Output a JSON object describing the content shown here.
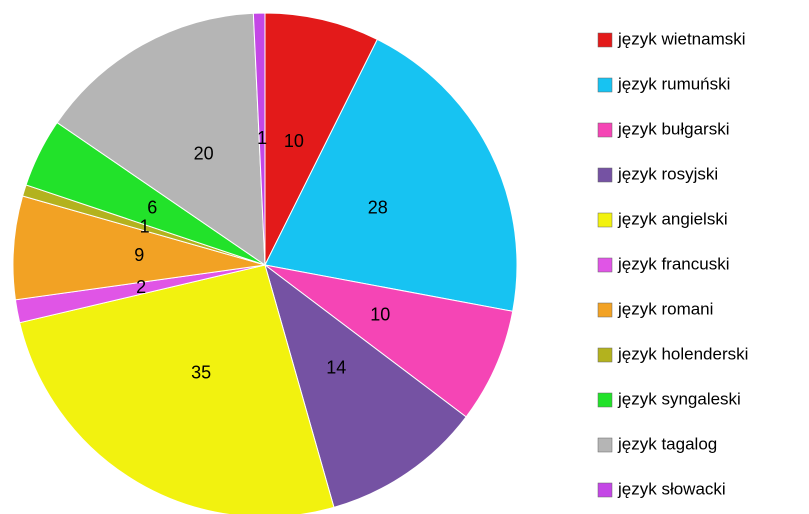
{
  "chart_data": {
    "type": "pie",
    "categories": [
      "język wietnamski",
      "język rumuński",
      "język bułgarski",
      "język rosyjski",
      "język angielski",
      "język francuski",
      "język romani",
      "język holenderski",
      "język syngaleski",
      "język tagalog",
      "język słowacki"
    ],
    "values": [
      10,
      28,
      10,
      14,
      35,
      2,
      9,
      1,
      6,
      20,
      1
    ],
    "colors": [
      "#e31a1a",
      "#17c3f2",
      "#f545b5",
      "#7552a3",
      "#f2f20f",
      "#e055e6",
      "#f2a224",
      "#b3b21e",
      "#22e22a",
      "#b5b5b5",
      "#c447e6"
    ]
  }
}
